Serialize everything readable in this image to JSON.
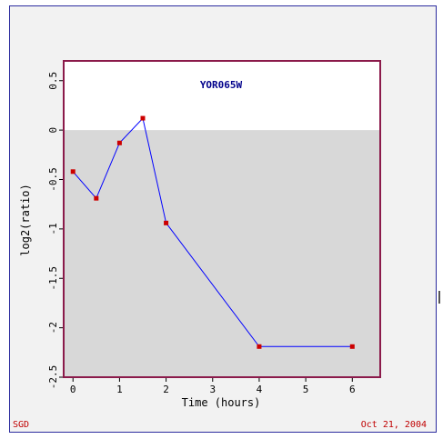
{
  "chart_data": {
    "type": "line",
    "title": "YOR065W",
    "xlabel": "Time (hours)",
    "ylabel": "log2(ratio)",
    "xlim": [
      -0.2,
      6.6
    ],
    "ylim": [
      -2.5,
      0.7
    ],
    "xticks": [
      "0",
      "1",
      "2",
      "3",
      "4",
      "5",
      "6"
    ],
    "yticks": [
      "0.5",
      "0",
      "-0.5",
      "-1",
      "-1.5",
      "-2",
      "-2.5"
    ],
    "series": [
      {
        "x": [
          0,
          0.5,
          1,
          1.5,
          2,
          4,
          6
        ],
        "y": [
          -0.42,
          -0.69,
          -0.13,
          0.12,
          -0.94,
          -2.19,
          -2.19
        ]
      }
    ],
    "negative_region_shaded": true
  },
  "colors": {
    "line": "#0000ff",
    "marker": "#cc0000",
    "plot_border": "#8b1a4a",
    "shade": "#d8d8d8",
    "title": "#00008b",
    "footer": "#c00000"
  },
  "footer": {
    "left": "SGD",
    "right": "Oct 21, 2004"
  }
}
